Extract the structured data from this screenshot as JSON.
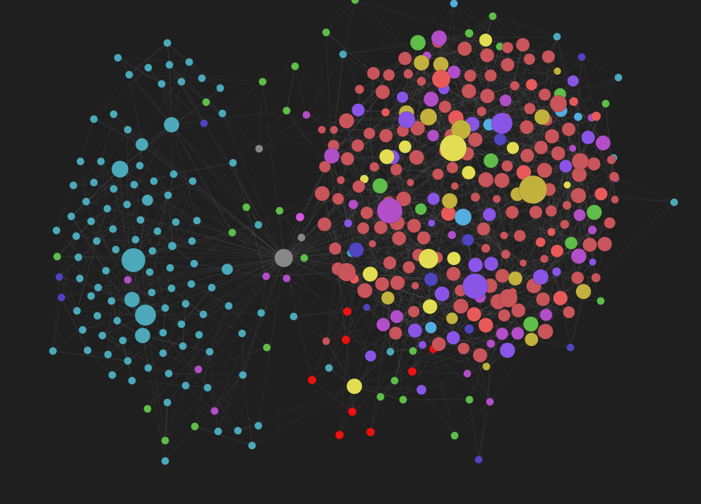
{
  "background": "#1f1f1f",
  "edge_color": "#b4b4b4",
  "edge_opacity": 0.14,
  "palette": {
    "teal": "#4ba9ba",
    "red": "#c8555a",
    "bright_red": "#e85a5a",
    "pure_red": "#ee1111",
    "purple": "#8a55e6",
    "magenta": "#b24ec8",
    "olive": "#c3b13e",
    "yellow": "#e2dd52",
    "green": "#5fbd4a",
    "blue": "#54aee0",
    "navy": "#5044c0",
    "gray": "#888888",
    "pink": "#d654df"
  },
  "node_legend": "none",
  "graph_labels": []
}
